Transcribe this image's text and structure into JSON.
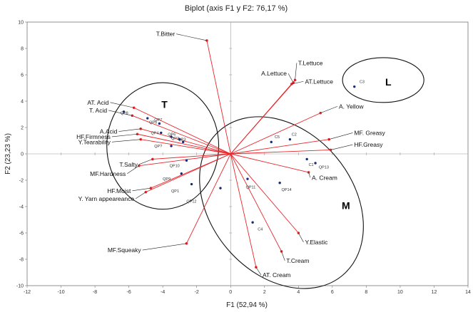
{
  "chart_data": {
    "type": "scatter",
    "title": "Biplot (axis F1 y F2: 76,17 %)",
    "xlabel": "F1 (52,94 %)",
    "ylabel": "F2 (23,23 %)",
    "xlim": [
      -12,
      14
    ],
    "ylim": [
      -10,
      10
    ],
    "x_ticks": [
      -12,
      -10,
      -8,
      -6,
      -4,
      -2,
      0,
      2,
      4,
      6,
      8,
      10,
      12,
      14
    ],
    "y_ticks": [
      -10,
      -8,
      -6,
      -4,
      -2,
      0,
      2,
      4,
      6,
      8,
      10
    ],
    "grid": false,
    "series": [
      {
        "color": "#e8262b",
        "points": [
          {
            "label": "T.Bitter",
            "x": -1.4,
            "y": 8.6,
            "lx": -3.2,
            "ly": 9.1
          },
          {
            "label": "T.Lettuce",
            "x": 3.8,
            "y": 5.6,
            "lx": 3.9,
            "ly": 6.9
          },
          {
            "label": "A.Lettuce",
            "x": 3.7,
            "y": 5.4,
            "lx": 3.4,
            "ly": 6.1
          },
          {
            "label": "AT.Lettuce",
            "x": 3.6,
            "y": 5.3,
            "lx": 4.3,
            "ly": 5.5
          },
          {
            "label": "A. Yellow",
            "x": 5.3,
            "y": 3.1,
            "lx": 6.3,
            "ly": 3.6
          },
          {
            "label": "MF. Greasy",
            "x": 5.8,
            "y": 1.1,
            "lx": 7.2,
            "ly": 1.6
          },
          {
            "label": "HF.Greasy",
            "x": 5.9,
            "y": 0.3,
            "lx": 7.2,
            "ly": 0.7
          },
          {
            "label": "AT. Acid",
            "x": -5.7,
            "y": 3.5,
            "lx": -7.1,
            "ly": 3.9
          },
          {
            "label": "T. Acid",
            "x": -5.8,
            "y": 2.9,
            "lx": -7.2,
            "ly": 3.3
          },
          {
            "label": "A.Acid",
            "x": -5.3,
            "y": 1.9,
            "lx": -6.6,
            "ly": 1.7
          },
          {
            "label": "HF.Firmness",
            "x": -5.5,
            "y": 1.5,
            "lx": -7.0,
            "ly": 1.3
          },
          {
            "label": "Y.Tearability",
            "x": -5.3,
            "y": 1.1,
            "lx": -7.0,
            "ly": 0.9
          },
          {
            "label": "T.Salty",
            "x": -4.6,
            "y": -0.4,
            "lx": -5.4,
            "ly": -0.8
          },
          {
            "label": "MF.Hardness",
            "x": -5.4,
            "y": -0.9,
            "lx": -6.1,
            "ly": -1.5
          },
          {
            "label": "HF.Moist",
            "x": -4.7,
            "y": -2.6,
            "lx": -5.8,
            "ly": -2.8
          },
          {
            "label": "Y. Yarn appeareance",
            "x": -5.0,
            "y": -2.9,
            "lx": -5.6,
            "ly": -3.4
          },
          {
            "label": "MF.Squeaky",
            "x": -2.6,
            "y": -6.8,
            "lx": -5.2,
            "ly": -7.3
          },
          {
            "label": "A. Cream",
            "x": 4.6,
            "y": -1.4,
            "lx": 4.7,
            "ly": -1.8
          },
          {
            "label": "Y.Elastic",
            "x": 4.0,
            "y": -6.0,
            "lx": 4.3,
            "ly": -6.7
          },
          {
            "label": "T.Cream",
            "x": 3.0,
            "y": -7.4,
            "lx": 3.2,
            "ly": -8.1
          },
          {
            "label": "AT. Cream",
            "x": 1.5,
            "y": -8.6,
            "lx": 1.8,
            "ly": -9.2
          }
        ]
      },
      {
        "color": "#1a2a7a",
        "points": [
          {
            "label": "C3",
            "x": 7.3,
            "y": 5.1,
            "lx": 7.6,
            "ly": 5.5
          },
          {
            "label": "C5",
            "x": 2.4,
            "y": 0.9,
            "lx": 2.6,
            "ly": 1.3
          },
          {
            "label": "C2",
            "x": 3.5,
            "y": 1.1,
            "lx": 3.6,
            "ly": 1.5
          },
          {
            "label": "C1",
            "x": 4.5,
            "y": -0.4,
            "lx": 4.6,
            "ly": -0.8
          },
          {
            "label": "QP13",
            "x": 5.0,
            "y": -0.7,
            "lx": 5.2,
            "ly": -1.0
          },
          {
            "label": "QP11",
            "x": 1.0,
            "y": -1.9,
            "lx": 0.9,
            "ly": -2.5
          },
          {
            "label": "QP14",
            "x": 2.9,
            "y": -2.2,
            "lx": 3.0,
            "ly": -2.7
          },
          {
            "label": "C4",
            "x": 1.3,
            "y": -5.2,
            "lx": 1.6,
            "ly": -5.7
          },
          {
            "label": "QP8",
            "x": -6.3,
            "y": 3.2,
            "lx": -6.5,
            "ly": 3.1
          },
          {
            "label": "QP7",
            "x": -4.2,
            "y": 2.3,
            "lx": -4.5,
            "ly": 2.6
          },
          {
            "label": "QP5",
            "x": -4.9,
            "y": 2.7,
            "lx": -4.8,
            "ly": 2.4
          },
          {
            "label": "QP4",
            "x": -4.1,
            "y": 1.6,
            "lx": -4.7,
            "ly": 1.6
          },
          {
            "label": "QP6",
            "x": -3.5,
            "y": 1.3,
            "lx": -3.7,
            "ly": 1.5
          },
          {
            "label": "QP2",
            "x": -3.0,
            "y": 1.1,
            "lx": -3.5,
            "ly": 1.2
          },
          {
            "label": "QP3",
            "x": -2.8,
            "y": 0.9,
            "lx": -3.1,
            "ly": 1.1
          },
          {
            "label": "QP?",
            "x": -3.5,
            "y": 0.6,
            "lx": -4.5,
            "ly": 0.6
          },
          {
            "label": "QP10",
            "x": -2.6,
            "y": -0.5,
            "lx": -3.6,
            "ly": -0.9
          },
          {
            "label": "QP9",
            "x": -2.9,
            "y": -1.5,
            "lx": -4.0,
            "ly": -1.9
          },
          {
            "label": "QP1",
            "x": -2.3,
            "y": -2.3,
            "lx": -3.5,
            "ly": -2.8
          },
          {
            "label": "QP12",
            "x": -0.6,
            "y": -2.6,
            "lx": -2.6,
            "ly": -3.6
          }
        ]
      }
    ],
    "groups": [
      {
        "label": "T",
        "lx": -3.9,
        "ly": 3.5,
        "cx": -4.0,
        "cy": 0.6,
        "rx": 3.3,
        "ry": 4.8,
        "rotate": 0
      },
      {
        "label": "L",
        "lx": 9.3,
        "ly": 5.2,
        "cx": 9.0,
        "cy": 5.6,
        "rx": 2.4,
        "ry": 1.7,
        "rotate": 0
      },
      {
        "label": "M",
        "lx": 6.8,
        "ly": -4.2,
        "cx": 3.0,
        "cy": -3.7,
        "rx": 4.2,
        "ry": 7.2,
        "rotate": 40
      }
    ]
  }
}
